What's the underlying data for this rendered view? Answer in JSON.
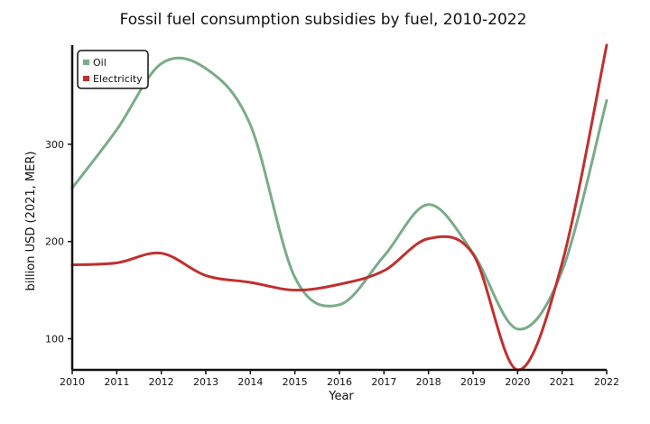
{
  "chart_data": {
    "type": "line",
    "title": "Fossil fuel consumption subsidies by fuel, 2010-2022",
    "xlabel": "Year",
    "ylabel": "billion USD (2021, MER)",
    "x": [
      2010,
      2011,
      2012,
      2013,
      2014,
      2015,
      2016,
      2017,
      2018,
      2019,
      2020,
      2021,
      2022
    ],
    "x_ticks": [
      "2010",
      "2011",
      "2012",
      "2013",
      "2014",
      "2015",
      "2016",
      "2017",
      "2018",
      "2019",
      "2020",
      "2021",
      "2022"
    ],
    "y_ticks": [
      "100",
      "200",
      "300"
    ],
    "xlim": [
      2010,
      2022
    ],
    "ylim": [
      68,
      402
    ],
    "grid": false,
    "legend_position": "top-left",
    "series": [
      {
        "name": "Oil",
        "color": "#7aab8a",
        "values": [
          255,
          315,
          383,
          378,
          320,
          163,
          135,
          185,
          238,
          188,
          110,
          170,
          345
        ]
      },
      {
        "name": "Electricity",
        "color": "#c0302e",
        "values": [
          176,
          178,
          188,
          165,
          158,
          150,
          156,
          170,
          203,
          187,
          68,
          178,
          402
        ]
      }
    ]
  }
}
